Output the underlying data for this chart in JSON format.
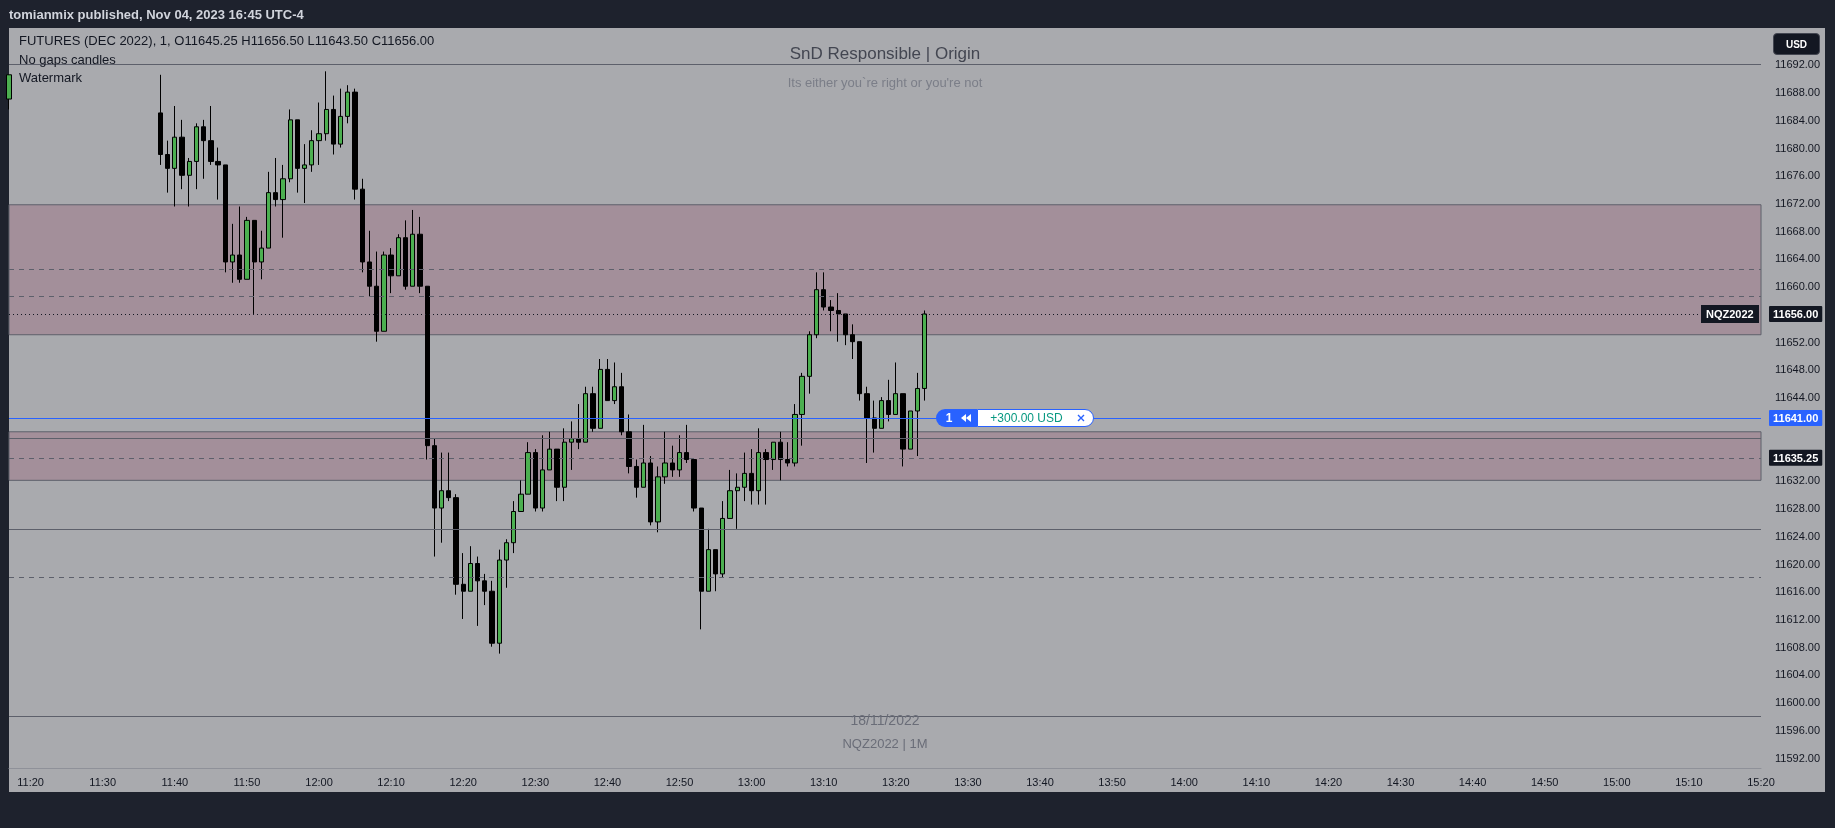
{
  "chart_data": {
    "type": "candlestick",
    "title": "SnD Responsible | Origin",
    "subtitle": "Its either you`re right or you're not",
    "x": [
      "2022-11-18T11:17",
      "2022-11-18T11:38",
      "2022-11-18T11:39",
      "2022-11-18T11:40",
      "2022-11-18T11:41",
      "2022-11-18T11:42",
      "2022-11-18T11:43",
      "2022-11-18T11:44",
      "2022-11-18T11:45",
      "2022-11-18T11:46",
      "2022-11-18T11:47",
      "2022-11-18T11:48",
      "2022-11-18T11:49",
      "2022-11-18T11:50",
      "2022-11-18T11:51",
      "2022-11-18T11:52",
      "2022-11-18T11:53",
      "2022-11-18T11:54",
      "2022-11-18T11:55",
      "2022-11-18T11:56",
      "2022-11-18T11:57",
      "2022-11-18T11:58",
      "2022-11-18T11:59",
      "2022-11-18T12:00",
      "2022-11-18T12:01",
      "2022-11-18T12:02",
      "2022-11-18T12:03",
      "2022-11-18T12:04",
      "2022-11-18T12:05",
      "2022-11-18T12:06",
      "2022-11-18T12:07",
      "2022-11-18T12:08",
      "2022-11-18T12:09",
      "2022-11-18T12:10",
      "2022-11-18T12:11",
      "2022-11-18T12:12",
      "2022-11-18T12:13",
      "2022-11-18T12:14",
      "2022-11-18T12:15",
      "2022-11-18T12:16",
      "2022-11-18T12:17",
      "2022-11-18T12:18",
      "2022-11-18T12:19",
      "2022-11-18T12:20",
      "2022-11-18T12:21",
      "2022-11-18T12:22",
      "2022-11-18T12:23",
      "2022-11-18T12:24",
      "2022-11-18T12:25",
      "2022-11-18T12:26",
      "2022-11-18T12:27",
      "2022-11-18T12:28",
      "2022-11-18T12:29",
      "2022-11-18T12:30",
      "2022-11-18T12:31",
      "2022-11-18T12:32",
      "2022-11-18T12:33",
      "2022-11-18T12:34",
      "2022-11-18T12:35",
      "2022-11-18T12:36",
      "2022-11-18T12:37",
      "2022-11-18T12:38",
      "2022-11-18T12:39",
      "2022-11-18T12:40",
      "2022-11-18T12:41",
      "2022-11-18T12:42",
      "2022-11-18T12:43",
      "2022-11-18T12:44",
      "2022-11-18T12:45",
      "2022-11-18T12:46",
      "2022-11-18T12:47",
      "2022-11-18T12:48",
      "2022-11-18T12:49",
      "2022-11-18T12:50",
      "2022-11-18T12:51",
      "2022-11-18T12:52",
      "2022-11-18T12:53",
      "2022-11-18T12:54",
      "2022-11-18T12:55",
      "2022-11-18T12:56",
      "2022-11-18T12:57",
      "2022-11-18T12:58",
      "2022-11-18T12:59",
      "2022-11-18T13:00",
      "2022-11-18T13:01",
      "2022-11-18T13:02",
      "2022-11-18T13:03",
      "2022-11-18T13:04",
      "2022-11-18T13:05",
      "2022-11-18T13:06",
      "2022-11-18T13:07",
      "2022-11-18T13:08",
      "2022-11-18T13:09",
      "2022-11-18T13:10",
      "2022-11-18T13:11",
      "2022-11-18T13:12",
      "2022-11-18T13:13",
      "2022-11-18T13:14",
      "2022-11-18T13:15",
      "2022-11-18T13:16",
      "2022-11-18T13:17",
      "2022-11-18T13:18",
      "2022-11-18T13:19",
      "2022-11-18T13:20",
      "2022-11-18T13:21",
      "2022-11-18T13:22",
      "2022-11-18T13:23",
      "2022-11-18T13:24"
    ],
    "ohlc": [
      [
        11687,
        11690.5,
        11685.5,
        11690.5
      ],
      [
        11685,
        11690.5,
        11677.5,
        11679
      ],
      [
        11679,
        11681,
        11673.5,
        11677
      ],
      [
        11677,
        11686,
        11671.5,
        11681.5
      ],
      [
        11681.5,
        11684,
        11674,
        11676
      ],
      [
        11676,
        11678.5,
        11671.5,
        11678
      ],
      [
        11678,
        11683.5,
        11674,
        11683
      ],
      [
        11683,
        11684,
        11675.5,
        11681
      ],
      [
        11681,
        11686,
        11677.5,
        11678
      ],
      [
        11678,
        11680,
        11672.5,
        11677.5
      ],
      [
        11677.5,
        11677.5,
        11662,
        11663.5
      ],
      [
        11663.5,
        11669,
        11660.5,
        11664.5
      ],
      [
        11664.5,
        11671.5,
        11660.5,
        11661
      ],
      [
        11661,
        11670,
        11661,
        11669.5
      ],
      [
        11669.5,
        11669.5,
        11656,
        11663.5
      ],
      [
        11663.5,
        11668,
        11661,
        11665.5
      ],
      [
        11665.5,
        11676.5,
        11665.5,
        11673.5
      ],
      [
        11673.5,
        11678.5,
        11671.5,
        11672.5
      ],
      [
        11672.5,
        11677.5,
        11667,
        11675.5
      ],
      [
        11675.5,
        11685.5,
        11675,
        11684
      ],
      [
        11684,
        11684,
        11673.5,
        11677
      ],
      [
        11677,
        11680.5,
        11672,
        11677.5
      ],
      [
        11677.5,
        11682.5,
        11676.5,
        11681
      ],
      [
        11681,
        11686.5,
        11677.5,
        11682
      ],
      [
        11682,
        11691,
        11681,
        11685.5
      ],
      [
        11685.5,
        11687.5,
        11679,
        11680.5
      ],
      [
        11680.5,
        11688.5,
        11680,
        11684.5
      ],
      [
        11684.5,
        11689,
        11683.5,
        11688
      ],
      [
        11688,
        11688.5,
        11672.5,
        11674
      ],
      [
        11674,
        11675.5,
        11662,
        11663.5
      ],
      [
        11663.5,
        11668,
        11658.5,
        11660
      ],
      [
        11660,
        11665,
        11652,
        11653.5
      ],
      [
        11653.5,
        11665,
        11653.5,
        11664.5
      ],
      [
        11664.5,
        11665.5,
        11659,
        11661.5
      ],
      [
        11661.5,
        11667.5,
        11661.5,
        11667
      ],
      [
        11667,
        11669.5,
        11659.5,
        11660
      ],
      [
        11660,
        11671,
        11660,
        11667.5
      ],
      [
        11667.5,
        11670,
        11659,
        11660
      ],
      [
        11660,
        11660,
        11635,
        11637
      ],
      [
        11637,
        11638,
        11621,
        11628
      ],
      [
        11628,
        11636,
        11623,
        11630.5
      ],
      [
        11630.5,
        11636,
        11629,
        11629.5
      ],
      [
        11629.5,
        11630,
        11615.5,
        11617
      ],
      [
        11617,
        11621.5,
        11612,
        11616
      ],
      [
        11616,
        11622.5,
        11616,
        11620
      ],
      [
        11620,
        11621,
        11611,
        11617.5
      ],
      [
        11617.5,
        11618.5,
        11614,
        11616
      ],
      [
        11616,
        11617.5,
        11608,
        11608.5
      ],
      [
        11608.5,
        11622,
        11607,
        11620.5
      ],
      [
        11620.5,
        11623.5,
        11616.5,
        11623
      ],
      [
        11623,
        11629,
        11621.5,
        11627.5
      ],
      [
        11627.5,
        11632,
        11627.5,
        11630
      ],
      [
        11630,
        11637.5,
        11630,
        11636
      ],
      [
        11636,
        11636.5,
        11627.5,
        11628
      ],
      [
        11628,
        11638.5,
        11627.5,
        11633.5
      ],
      [
        11633.5,
        11639,
        11633.5,
        11636.5
      ],
      [
        11636.5,
        11636.5,
        11629,
        11631
      ],
      [
        11631,
        11639.5,
        11629,
        11637.5
      ],
      [
        11637.5,
        11640.5,
        11633.5,
        11638
      ],
      [
        11638,
        11643,
        11636.5,
        11637.5
      ],
      [
        11637.5,
        11645.5,
        11637.5,
        11644.5
      ],
      [
        11644.5,
        11645.5,
        11639,
        11639.5
      ],
      [
        11639.5,
        11649.5,
        11639.5,
        11648
      ],
      [
        11648,
        11649.5,
        11643.5,
        11643.5
      ],
      [
        11643.5,
        11649,
        11643,
        11645.5
      ],
      [
        11645.5,
        11647.5,
        11638.5,
        11639
      ],
      [
        11639,
        11641.5,
        11633,
        11634
      ],
      [
        11634,
        11635,
        11629.5,
        11631
      ],
      [
        11631,
        11640,
        11631,
        11634.5
      ],
      [
        11634.5,
        11635.5,
        11625.5,
        11626
      ],
      [
        11626,
        11634,
        11624.5,
        11632.5
      ],
      [
        11632.5,
        11639,
        11631.5,
        11634.5
      ],
      [
        11634.5,
        11637,
        11632.5,
        11633.5
      ],
      [
        11633.5,
        11638.5,
        11632.5,
        11636
      ],
      [
        11636,
        11640,
        11634.5,
        11635
      ],
      [
        11635,
        11635,
        11627.5,
        11628
      ],
      [
        11628,
        11628,
        11610.5,
        11616
      ],
      [
        11616,
        11625,
        11616,
        11622
      ],
      [
        11622,
        11622,
        11616,
        11618.5
      ],
      [
        11618.5,
        11629,
        11618,
        11626.5
      ],
      [
        11626.5,
        11633.5,
        11626.5,
        11630.5
      ],
      [
        11630.5,
        11633,
        11625,
        11631
      ],
      [
        11631,
        11636,
        11629,
        11633
      ],
      [
        11633,
        11636.5,
        11628.5,
        11630.5
      ],
      [
        11630.5,
        11639.5,
        11628.5,
        11636
      ],
      [
        11636,
        11636.5,
        11628.5,
        11635
      ],
      [
        11635,
        11637.5,
        11633.5,
        11637.5
      ],
      [
        11637.5,
        11639,
        11632,
        11635
      ],
      [
        11635,
        11637.5,
        11634,
        11634.5
      ],
      [
        11634.5,
        11643,
        11634,
        11641.5
      ],
      [
        11641.5,
        11647.5,
        11637,
        11647
      ],
      [
        11647,
        11653.5,
        11644.5,
        11653
      ],
      [
        11653,
        11662,
        11652.5,
        11659.5
      ],
      [
        11659.5,
        11662,
        11656.5,
        11657
      ],
      [
        11657,
        11658,
        11653.5,
        11656.5
      ],
      [
        11656.5,
        11659,
        11652,
        11656
      ],
      [
        11656,
        11656,
        11651.5,
        11653
      ],
      [
        11653,
        11654.5,
        11649.5,
        11652
      ],
      [
        11652,
        11652,
        11643.5,
        11644.5
      ],
      [
        11644.5,
        11645.5,
        11634.5,
        11641
      ],
      [
        11641,
        11643.5,
        11636,
        11639.5
      ],
      [
        11639.5,
        11644,
        11639.5,
        11643.5
      ],
      [
        11643.5,
        11646.5,
        11640.5,
        11641.5
      ],
      [
        11641.5,
        11649,
        11641.5,
        11644.5
      ],
      [
        11644.5,
        11644.5,
        11634,
        11636.5
      ],
      [
        11636.5,
        11642,
        11636.5,
        11642
      ],
      [
        11642,
        11647.5,
        11635.5,
        11645.25
      ],
      [
        11645.25,
        11656.5,
        11643.5,
        11656
      ]
    ],
    "colors": [
      "#4caf50",
      "#000000",
      "#000000",
      "#4caf50",
      "#000000",
      "#4caf50",
      "#4caf50",
      "#000000",
      "#000000",
      "#000000",
      "#000000",
      "#4caf50",
      "#000000",
      "#4caf50",
      "#000000",
      "#4caf50",
      "#4caf50",
      "#000000",
      "#4caf50",
      "#4caf50",
      "#000000",
      "#4caf50",
      "#4caf50",
      "#4caf50",
      "#4caf50",
      "#000000",
      "#4caf50",
      "#4caf50",
      "#000000",
      "#000000",
      "#000000",
      "#000000",
      "#4caf50",
      "#000000",
      "#4caf50",
      "#000000",
      "#4caf50",
      "#000000",
      "#000000",
      "#000000",
      "#4caf50",
      "#000000",
      "#000000",
      "#000000",
      "#4caf50",
      "#000000",
      "#000000",
      "#000000",
      "#4caf50",
      "#4caf50",
      "#4caf50",
      "#4caf50",
      "#4caf50",
      "#000000",
      "#4caf50",
      "#4caf50",
      "#000000",
      "#4caf50",
      "#4caf50",
      "#000000",
      "#4caf50",
      "#000000",
      "#4caf50",
      "#000000",
      "#4caf50",
      "#000000",
      "#000000",
      "#000000",
      "#4caf50",
      "#000000",
      "#4caf50",
      "#4caf50",
      "#000000",
      "#4caf50",
      "#000000",
      "#000000",
      "#000000",
      "#4caf50",
      "#000000",
      "#4caf50",
      "#4caf50",
      "#4caf50",
      "#4caf50",
      "#000000",
      "#4caf50",
      "#000000",
      "#4caf50",
      "#000000",
      "#000000",
      "#4caf50",
      "#4caf50",
      "#4caf50",
      "#4caf50",
      "#000000",
      "#000000",
      "#000000",
      "#000000",
      "#000000",
      "#000000",
      "#000000",
      "#000000",
      "#4caf50",
      "#000000",
      "#4caf50",
      "#000000",
      "#4caf50",
      "#4caf50",
      "#4caf50"
    ],
    "xlim": [
      "2022-11-18T11:17",
      "2022-11-18T15:20"
    ],
    "xticks": [
      {
        "value": "2022-11-18T11:20",
        "label": "11:20"
      },
      {
        "value": "2022-11-18T11:30",
        "label": "11:30"
      },
      {
        "value": "2022-11-18T11:40",
        "label": "11:40"
      },
      {
        "value": "2022-11-18T11:50",
        "label": "11:50"
      },
      {
        "value": "2022-11-18T12:00",
        "label": "12:00"
      },
      {
        "value": "2022-11-18T12:10",
        "label": "12:10"
      },
      {
        "value": "2022-11-18T12:20",
        "label": "12:20"
      },
      {
        "value": "2022-11-18T12:30",
        "label": "12:30"
      },
      {
        "value": "2022-11-18T12:40",
        "label": "12:40"
      },
      {
        "value": "2022-11-18T12:50",
        "label": "12:50"
      },
      {
        "value": "2022-11-18T13:00",
        "label": "13:00"
      },
      {
        "value": "2022-11-18T13:10",
        "label": "13:10"
      },
      {
        "value": "2022-11-18T13:20",
        "label": "13:20"
      },
      {
        "value": "2022-11-18T13:30",
        "label": "13:30"
      },
      {
        "value": "2022-11-18T13:40",
        "label": "13:40"
      },
      {
        "value": "2022-11-18T13:50",
        "label": "13:50"
      },
      {
        "value": "2022-11-18T14:00",
        "label": "14:00"
      },
      {
        "value": "2022-11-18T14:10",
        "label": "14:10"
      },
      {
        "value": "2022-11-18T14:20",
        "label": "14:20"
      },
      {
        "value": "2022-11-18T14:30",
        "label": "14:30"
      },
      {
        "value": "2022-11-18T14:40",
        "label": "14:40"
      },
      {
        "value": "2022-11-18T14:50",
        "label": "14:50"
      },
      {
        "value": "2022-11-18T15:00",
        "label": "15:00"
      },
      {
        "value": "2022-11-18T15:10",
        "label": "15:10"
      },
      {
        "value": "2022-11-18T15:20",
        "label": "15:20"
      }
    ],
    "ylim": [
      11590.5,
      11697.25
    ],
    "yticks": [
      {
        "value": 11592,
        "label": "11592.00"
      },
      {
        "value": 11596,
        "label": "11596.00"
      },
      {
        "value": 11600,
        "label": "11600.00"
      },
      {
        "value": 11604,
        "label": "11604.00"
      },
      {
        "value": 11608,
        "label": "11608.00"
      },
      {
        "value": 11612,
        "label": "11612.00"
      },
      {
        "value": 11616,
        "label": "11616.00"
      },
      {
        "value": 11620,
        "label": "11620.00"
      },
      {
        "value": 11624,
        "label": "11624.00"
      },
      {
        "value": 11628,
        "label": "11628.00"
      },
      {
        "value": 11632,
        "label": "11632.00"
      },
      {
        "value": 11644,
        "label": "11644.00"
      },
      {
        "value": 11648,
        "label": "11648.00"
      },
      {
        "value": 11652,
        "label": "11652.00"
      },
      {
        "value": 11656,
        "label": null
      },
      {
        "value": 11660,
        "label": "11660.00"
      },
      {
        "value": 11664,
        "label": "11664.00"
      },
      {
        "value": 11668,
        "label": "11668.00"
      },
      {
        "value": 11672,
        "label": "11672.00"
      },
      {
        "value": 11676,
        "label": "11676.00"
      },
      {
        "value": 11680,
        "label": "11680.00"
      },
      {
        "value": 11684,
        "label": "11684.00"
      },
      {
        "value": 11688,
        "label": "11688.00"
      },
      {
        "value": 11692,
        "label": "11692.00"
      }
    ],
    "bands": [
      {
        "axis": "y",
        "from": 11653,
        "to": 11671.75,
        "color": "#a38f9a"
      },
      {
        "axis": "y",
        "from": 11632,
        "to": 11639,
        "color": "#a38f9a"
      }
    ],
    "ref_lines": [
      {
        "axis": "y",
        "value": 11692,
        "label": null,
        "color": "#5d606b",
        "line_style": "solid"
      },
      {
        "axis": "y",
        "value": 11662.5,
        "label": null,
        "color": "#5d606b",
        "line_style": "dashed"
      },
      {
        "axis": "y",
        "value": 11658.5,
        "label": null,
        "color": "#5d606b",
        "line_style": "dashed"
      },
      {
        "axis": "y",
        "value": 11656,
        "label": "11656.00",
        "color": "#131722",
        "line_style": "dotted"
      },
      {
        "axis": "y",
        "value": 11641,
        "label": "11641.00",
        "color": "#2962ff",
        "line_style": "solid"
      },
      {
        "axis": "y",
        "value": 11638,
        "label": null,
        "color": "#5d606b",
        "line_style": "solid"
      },
      {
        "axis": "y",
        "value": 11635.25,
        "label": "11635.25",
        "color": "#5d606b",
        "line_style": "dashed"
      },
      {
        "axis": "y",
        "value": 11625,
        "label": null,
        "color": "#5d606b",
        "line_style": "solid"
      },
      {
        "axis": "y",
        "value": 11618,
        "label": null,
        "color": "#5d606b",
        "line_style": "dashed"
      },
      {
        "axis": "y",
        "value": 11598,
        "label": null,
        "color": "#5d606b",
        "line_style": "solid"
      }
    ],
    "annotations": [
      "tomianmix published, Nov 04, 2023 16:45 UTC-4",
      "FUTURES (DEC 2022), 1, O11645.25 H11656.50 L11643.50 C11656.00",
      "No gaps candles",
      "Watermark",
      "18/11/2022",
      "NQZ2022 | 1M",
      "USD",
      {
        "text": "NQZ2022",
        "y": 11656
      },
      {
        "text": "1",
        "y": 11641
      },
      {
        "text": "+300.00 USD",
        "y": 11641
      }
    ]
  }
}
